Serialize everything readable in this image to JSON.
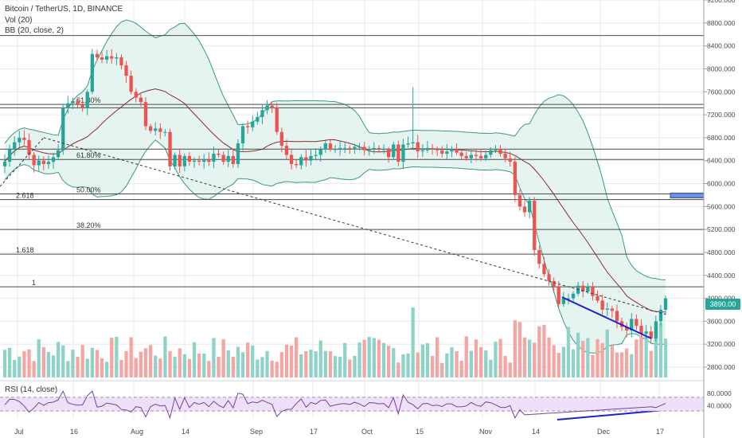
{
  "legend": {
    "title": "Bitcoin / TetherUS, 1D, BINANCE",
    "vol": "Vol (20)",
    "bb": "BB (20, close, 2)",
    "rsi": "RSI (14, close)"
  },
  "last_price": "3890.00",
  "colors": {
    "up": "#26a69a",
    "down": "#ef5350",
    "vol_up": "#8fd3c8",
    "vol_down": "#f4a6a4",
    "bb_band": "#3a9a7e",
    "bb_basis": "#8b2c2c",
    "rsi_line": "#7e3f9d",
    "rsi_band": "#ede1f7",
    "trend_blue": "#1f1fd0",
    "fill_bb": "#e6f4f1",
    "grid": "#e6e9ee"
  },
  "chart_data": {
    "type": "candlestick",
    "x_ticks": [
      "Jul",
      "16",
      "Aug",
      "14",
      "Sep",
      "17",
      "Oct",
      "15",
      "Nov",
      "14",
      "Dec",
      "17"
    ],
    "y_ticks": [
      "9200.000",
      "8800.000",
      "8400.000",
      "8000.000",
      "7600.000",
      "7200.000",
      "6800.000",
      "6400.000",
      "6000.000",
      "5600.000",
      "5200.000",
      "4800.000",
      "4400.000",
      "4000.000",
      "3600.000",
      "3200.000",
      "2800.000"
    ],
    "y_range": [
      2800,
      9200
    ],
    "rsi_ticks": [
      "80.0000",
      "40.0000"
    ],
    "horizontal_levels": [
      {
        "label": "",
        "price": 8580
      },
      {
        "label": "61.80%",
        "price": 7380
      },
      {
        "label": "",
        "price": 7320
      },
      {
        "label": "",
        "price": 6600
      },
      {
        "label": "61.80%",
        "price": 6420
      },
      {
        "label": "50.00%",
        "price": 5820
      },
      {
        "label": "2.618",
        "price": 5720
      },
      {
        "label": "38.20%",
        "price": 5200
      },
      {
        "label": "1.618",
        "price": 4770
      },
      {
        "label": "1",
        "price": 4200
      }
    ],
    "current_price": 3890,
    "close_prices": [
      6380,
      6600,
      6720,
      6800,
      6760,
      6500,
      6320,
      6400,
      6340,
      6380,
      6460,
      6580,
      7320,
      7400,
      7440,
      7380,
      7320,
      7600,
      8260,
      8200,
      8160,
      8220,
      8180,
      8200,
      8060,
      7880,
      7600,
      7500,
      7420,
      7000,
      6920,
      6960,
      6900,
      6900,
      6300,
      6500,
      6300,
      6480,
      6380,
      6400,
      6380,
      6420,
      6380,
      6520,
      6500,
      6380,
      6480,
      6340,
      6700,
      7000,
      6980,
      7080,
      7160,
      7280,
      7360,
      7320,
      6900,
      6660,
      6500,
      6340,
      6320,
      6460,
      6400,
      6480,
      6500,
      6600,
      6700,
      6600,
      6600,
      6620,
      6620,
      6600,
      6640,
      6640,
      6580,
      6600,
      6620,
      6600,
      6600,
      6460,
      6680,
      6380,
      6680,
      6700,
      6720,
      6560,
      6580,
      6620,
      6600,
      6580,
      6520,
      6560,
      6600,
      6540,
      6480,
      6440,
      6500,
      6480,
      6440,
      6500,
      6580,
      6600,
      6520,
      6440,
      6380,
      5800,
      5600,
      5500,
      5700,
      4840,
      4600,
      4420,
      4300,
      4200,
      3900,
      4000,
      4000,
      4080,
      4220,
      4120,
      4200,
      4040,
      3960,
      3800,
      3820,
      3780,
      3600,
      3500,
      3440,
      3640,
      3520,
      3380,
      3420,
      3300,
      3600,
      3800,
      4000
    ]
  }
}
